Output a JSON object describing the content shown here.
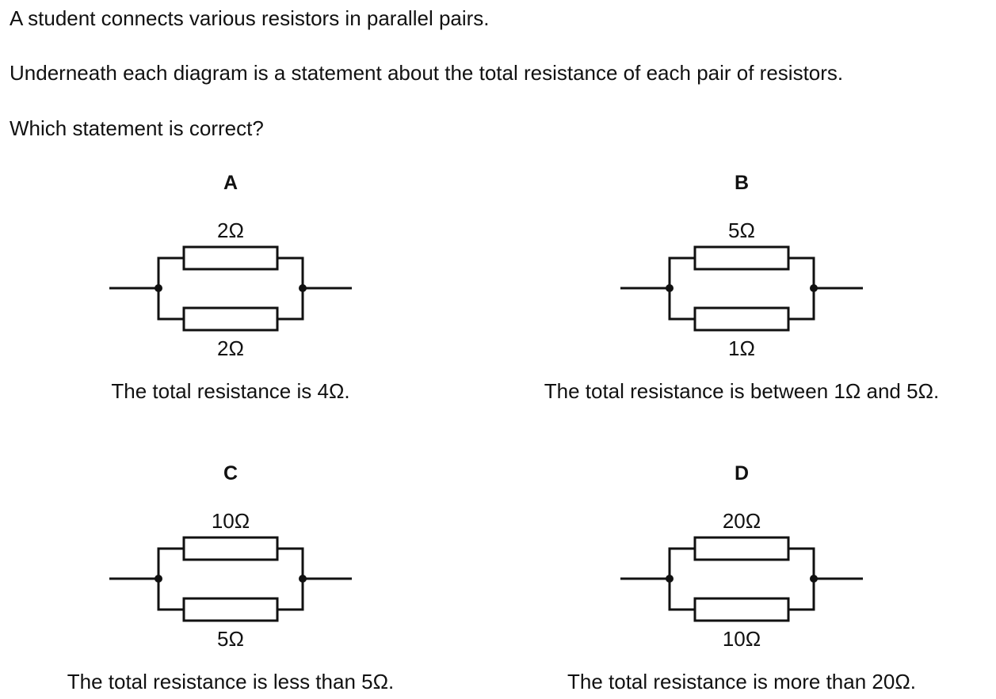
{
  "question": {
    "lines": [
      "A student connects various resistors in parallel pairs.",
      "Underneath each diagram is a statement about the total resistance of each pair of resistors.",
      "Which statement is correct?"
    ]
  },
  "options": [
    {
      "letter": "A",
      "top_resistor": "2Ω",
      "bottom_resistor": "2Ω",
      "statement": "The total resistance is 4Ω."
    },
    {
      "letter": "B",
      "top_resistor": "5Ω",
      "bottom_resistor": "1Ω",
      "statement": "The total resistance is between 1Ω and 5Ω."
    },
    {
      "letter": "C",
      "top_resistor": "10Ω",
      "bottom_resistor": "5Ω",
      "statement": "The total resistance is less than 5Ω."
    },
    {
      "letter": "D",
      "top_resistor": "20Ω",
      "bottom_resistor": "10Ω",
      "statement": "The total resistance is more than 20Ω."
    }
  ]
}
